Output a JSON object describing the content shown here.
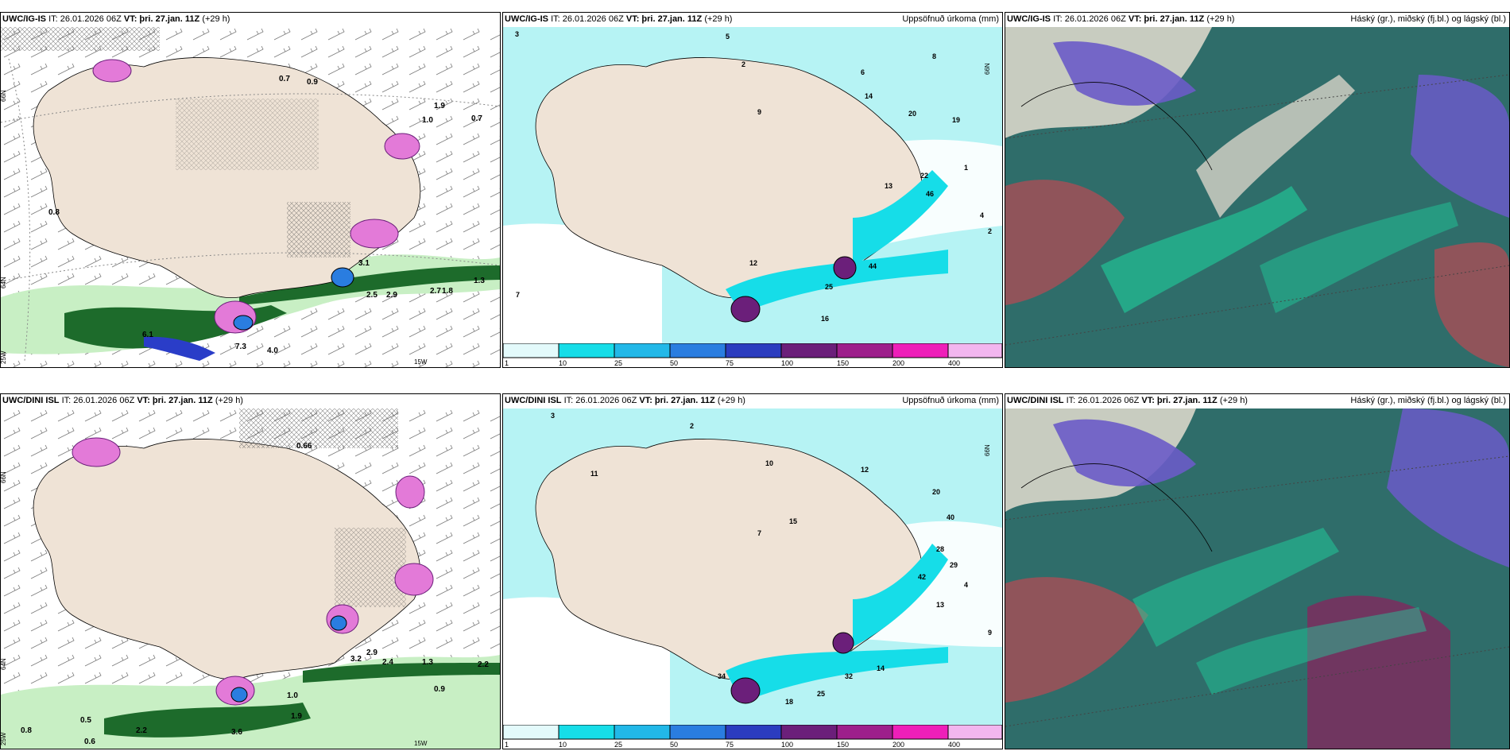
{
  "colors": {
    "land": "#efe3d6",
    "precip_light": "#b6f3f4",
    "precip_cyan": "#16dde8",
    "precip_blue": "#2a7de0",
    "precip_purple": "#6b1f7a",
    "precip_magenta": "#c727a6",
    "snow_pink": "#e37ad8",
    "green_light": "#c8efc4",
    "green_dark": "#1d6b2b",
    "cloud_high": "#6a5bc8",
    "cloud_mid": "#2f6d6a",
    "cloud_low": "#b14c55"
  },
  "precip_scale": [
    "1",
    "10",
    "25",
    "50",
    "75",
    "100",
    "150",
    "200",
    "400"
  ],
  "panels": [
    {
      "model": "UWC/IG-IS",
      "it": "IT: 26.01.2026 06Z",
      "vt_label": "VT:",
      "vt": "þri. 27.jan. 11Z",
      "lead": "(+29 h)",
      "title_right": "",
      "labels": [
        "0.7",
        "0.9",
        "1.0",
        "1.9",
        "0.8",
        "0.7",
        "6.1",
        "7.3",
        "4.0",
        "1.3",
        "2.5",
        "2.9",
        "2.7",
        "3.1",
        "1.8"
      ],
      "ticks": [
        "66N",
        "64N",
        "25W",
        "15W"
      ]
    },
    {
      "model": "UWC/IG-IS",
      "it": "IT: 26.01.2026 06Z",
      "vt_label": "VT:",
      "vt": "þri. 27.jan. 11Z",
      "lead": "(+29 h)",
      "title_right": "Uppsöfnuð úrkoma (mm)",
      "labels": [
        "3",
        "5",
        "6",
        "8",
        "2",
        "12",
        "7",
        "9",
        "14",
        "20",
        "19",
        "22",
        "16",
        "25",
        "44",
        "46",
        "13",
        "4",
        "1",
        "2"
      ],
      "ticks": [
        "66N"
      ]
    },
    {
      "model": "UWC/IG-IS",
      "it": "IT: 26.01.2026 06Z",
      "vt_label": "VT:",
      "vt": "þri. 27.jan. 11Z",
      "lead": "(+29 h)",
      "title_right": "Háský (gr.), miðský (fj.bl.) og lágský (bl.)",
      "labels": [],
      "ticks": []
    },
    {
      "model": "UWC/DINI ISL",
      "it": "IT: 26.01.2026 06Z",
      "vt_label": "VT:",
      "vt": "þri. 27.jan. 11Z",
      "lead": "(+29 h)",
      "title_right": "",
      "labels": [
        "0.5",
        "0.6",
        "0.8",
        "2.2",
        "3.6",
        "1.9",
        "1.0",
        "0.9",
        "2.4",
        "2.9",
        "3.2",
        "2.2",
        "0.66",
        "1.3"
      ],
      "ticks": [
        "66N",
        "64N",
        "25W",
        "15W"
      ]
    },
    {
      "model": "UWC/DINI ISL",
      "it": "IT: 26.01.2026 06Z",
      "vt_label": "VT:",
      "vt": "þri. 27.jan. 11Z",
      "lead": "(+29 h)",
      "title_right": "Uppsöfnuð úrkoma (mm)",
      "labels": [
        "3",
        "2",
        "11",
        "7",
        "10",
        "12",
        "15",
        "20",
        "28",
        "29",
        "40",
        "42",
        "34",
        "32",
        "25",
        "18",
        "14",
        "13",
        "4",
        "9"
      ],
      "ticks": [
        "66N"
      ]
    },
    {
      "model": "UWC/DINI ISL",
      "it": "IT: 26.01.2026 06Z",
      "vt_label": "VT:",
      "vt": "þri. 27.jan. 11Z",
      "lead": "(+29 h)",
      "title_right": "Háský (gr.), miðský (fj.bl.) og lágský (bl.)",
      "labels": [],
      "ticks": []
    }
  ]
}
